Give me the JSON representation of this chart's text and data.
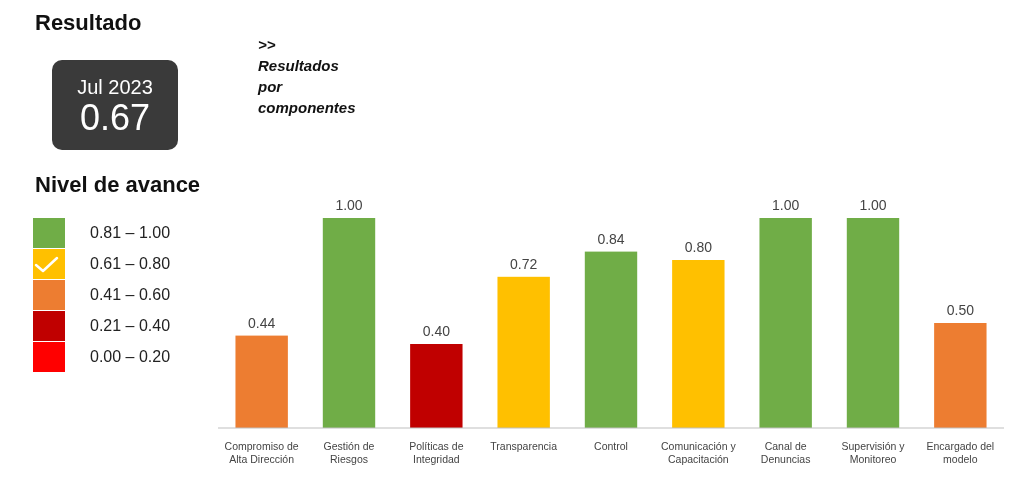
{
  "chart_data": [
    {
      "type": "other",
      "title": "Resultado",
      "annotations": [
        "Jul 2023",
        "0.67"
      ]
    },
    {
      "type": "bar",
      "subtitle": ">> Resultados por componentes",
      "legend_title": "Nivel de avance",
      "legend": "left",
      "stacked": true,
      "categories": [
        "Compromiso de Alta Dirección",
        "Gestión de Riesgos",
        "Políticas de Integridad",
        "Transparencia",
        "Control",
        "Comunicación y Capacitación",
        "Canal de Denuncias",
        "Supervisión y Monitoreo",
        "Encargado del modelo"
      ],
      "series": [
        {
          "name": "0.81 – 1.00",
          "color": "#70ad47",
          "values": [
            null,
            1.0,
            null,
            null,
            0.84,
            null,
            1.0,
            1.0,
            null
          ],
          "value_labels": [
            null,
            "1.00",
            null,
            null,
            "0.84",
            null,
            "1.00",
            "1.00",
            null
          ]
        },
        {
          "name": "0.61 – 0.80",
          "color": "#ffc000",
          "values": [
            null,
            null,
            null,
            0.72,
            null,
            0.8,
            null,
            null,
            null
          ],
          "value_labels": [
            null,
            null,
            null,
            "0.72",
            null,
            "0.80",
            null,
            null,
            null
          ]
        },
        {
          "name": "0.41 – 0.60",
          "color": "#ed7d31",
          "values": [
            0.44,
            null,
            null,
            null,
            null,
            null,
            null,
            null,
            0.5
          ],
          "value_labels": [
            "0.44",
            null,
            null,
            null,
            null,
            null,
            null,
            null,
            "0.50"
          ]
        },
        {
          "name": "0.21 – 0.40",
          "color": "#c00000",
          "values": [
            null,
            null,
            0.4,
            null,
            null,
            null,
            null,
            null,
            null
          ],
          "value_labels": [
            null,
            null,
            "0.40",
            null,
            null,
            null,
            null,
            null,
            null
          ]
        },
        {
          "name": "0.00 – 0.20",
          "color": "#ff0000",
          "values": [
            null,
            null,
            null,
            null,
            null,
            null,
            null,
            null,
            null
          ],
          "value_labels": [
            null,
            null,
            null,
            null,
            null,
            null,
            null,
            null,
            null
          ]
        }
      ]
    }
  ]
}
